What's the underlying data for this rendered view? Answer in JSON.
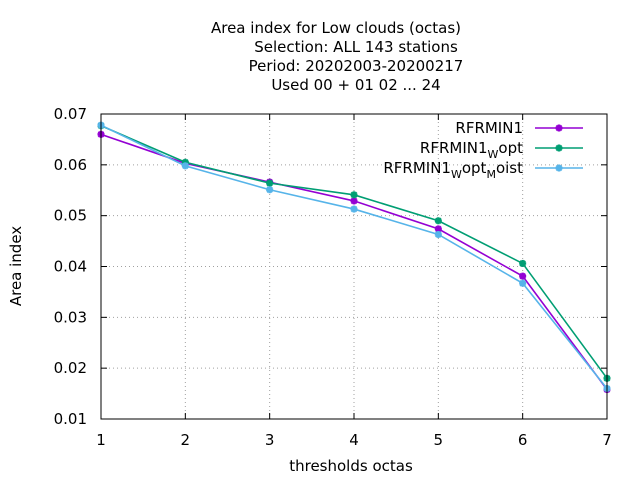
{
  "chart_data": {
    "type": "line",
    "title_lines": [
      "Area index  for Low clouds (octas)",
      "Selection: ALL    143 stations",
      "Period: 20202003-20200217",
      "Used  00 + 01 02 ... 24"
    ],
    "xlabel": "thresholds octas",
    "ylabel": "Area index",
    "x": [
      1,
      2,
      3,
      4,
      5,
      6,
      7
    ],
    "xlim": [
      1,
      7
    ],
    "ylim": [
      0.01,
      0.07
    ],
    "xticks": [
      "1",
      "2",
      "3",
      "4",
      "5",
      "6",
      "7"
    ],
    "yticks": [
      "0.01",
      "0.02",
      "0.03",
      "0.04",
      "0.05",
      "0.06",
      "0.07"
    ],
    "grid": true,
    "legend_position": "top-right",
    "series": [
      {
        "name": "RFRMIN1",
        "legend_parts": [
          {
            "text": "RFRMIN1",
            "sub": false
          }
        ],
        "color": "#9400d3",
        "values": [
          0.066,
          0.0603,
          0.0566,
          0.0529,
          0.0474,
          0.0381,
          0.0158
        ]
      },
      {
        "name": "RFRMIN1_Wopt",
        "legend_parts": [
          {
            "text": "RFRMIN1",
            "sub": false
          },
          {
            "text": "W",
            "sub": true
          },
          {
            "text": "opt",
            "sub": false
          }
        ],
        "color": "#009e73",
        "values": [
          0.0677,
          0.0605,
          0.0564,
          0.0541,
          0.049,
          0.0406,
          0.018
        ]
      },
      {
        "name": "RFRMIN1_Wopt_Moist",
        "legend_parts": [
          {
            "text": "RFRMIN1",
            "sub": false
          },
          {
            "text": "W",
            "sub": true
          },
          {
            "text": "opt",
            "sub": false
          },
          {
            "text": "M",
            "sub": true
          },
          {
            "text": "oist",
            "sub": false
          }
        ],
        "color": "#56b4e9",
        "values": [
          0.0678,
          0.0598,
          0.0551,
          0.0513,
          0.0463,
          0.0367,
          0.016
        ]
      }
    ]
  }
}
